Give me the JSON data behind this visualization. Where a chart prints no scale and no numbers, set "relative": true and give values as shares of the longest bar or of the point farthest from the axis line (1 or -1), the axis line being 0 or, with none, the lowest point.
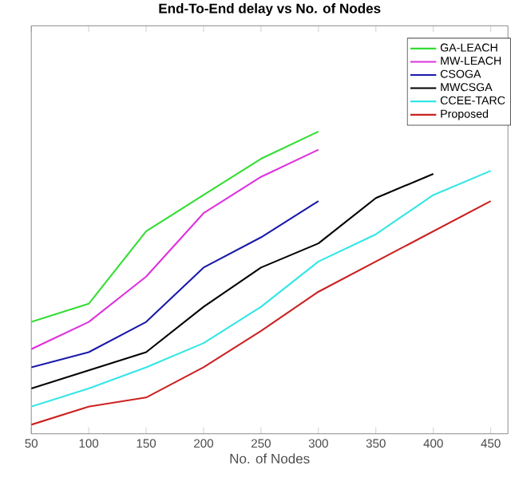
{
  "chart_data": {
    "type": "line",
    "title": "End-To-End delay vs No. of Nodes",
    "xlabel": "No. of Nodes",
    "x": [
      50,
      100,
      150,
      200,
      250,
      300,
      350,
      400,
      450
    ],
    "xlim": [
      50,
      465
    ],
    "xticks": [
      50,
      100,
      150,
      200,
      250,
      300,
      350,
      400,
      450
    ],
    "relative": true,
    "legend": "top right",
    "grid": false,
    "marker": "none",
    "line_style": "solid",
    "series": [
      {
        "name": "GA-LEACH",
        "color": "#33dd33",
        "values": [
          0.37,
          0.43,
          0.67,
          0.79,
          0.91,
          1.0,
          null,
          null,
          null
        ]
      },
      {
        "name": "MW-LEACH",
        "color": "#dd33dd",
        "values": [
          0.28,
          0.37,
          0.52,
          0.73,
          0.85,
          0.94,
          null,
          null,
          null
        ]
      },
      {
        "name": "CSOGA",
        "color": "#1a1aaa",
        "values": [
          0.22,
          0.27,
          0.37,
          0.55,
          0.65,
          0.77,
          null,
          null,
          null
        ]
      },
      {
        "name": "MWCSGA",
        "color": "#000000",
        "values": [
          0.15,
          0.21,
          0.27,
          0.42,
          0.55,
          0.63,
          0.78,
          0.86,
          null
        ]
      },
      {
        "name": "CCEE-TARC",
        "color": "#33e6e6",
        "values": [
          0.09,
          0.15,
          0.22,
          0.3,
          0.42,
          0.57,
          0.66,
          0.79,
          0.87
        ]
      },
      {
        "name": "Proposed",
        "color": "#cc2222",
        "values": [
          0.03,
          0.09,
          0.12,
          0.22,
          0.34,
          0.47,
          0.57,
          0.67,
          0.77
        ]
      }
    ]
  }
}
